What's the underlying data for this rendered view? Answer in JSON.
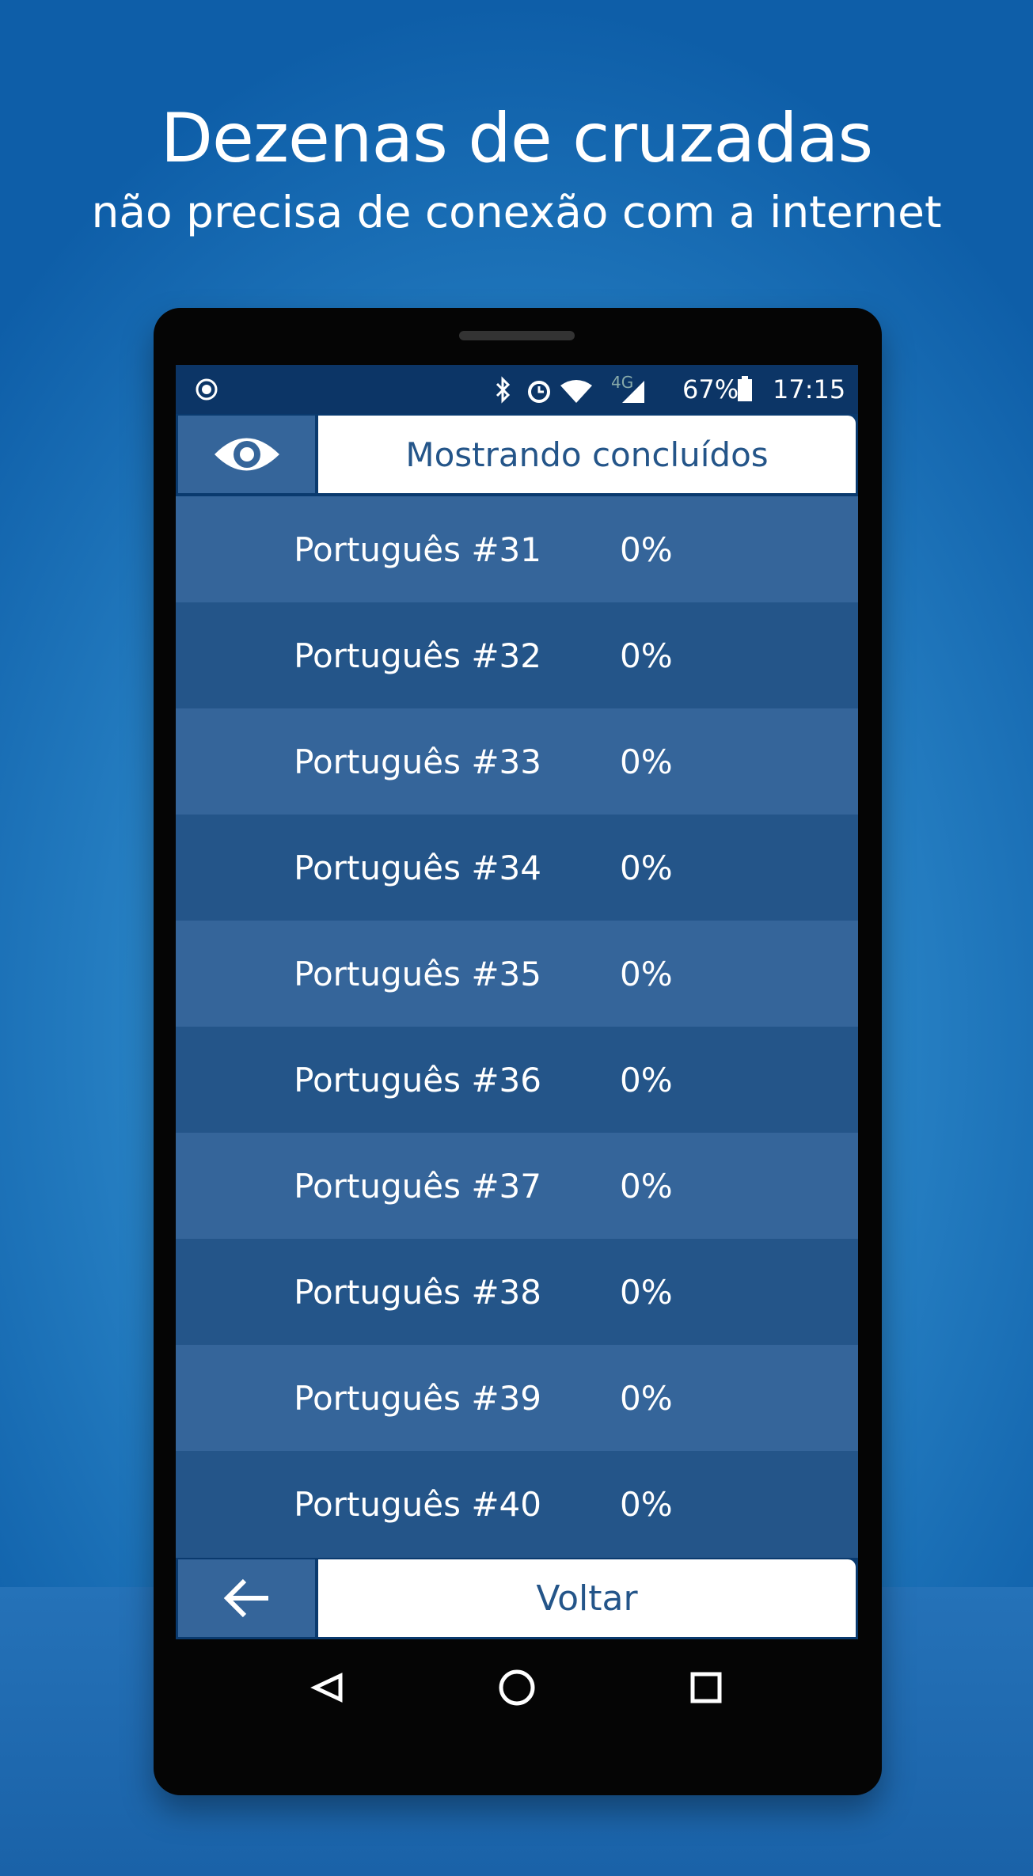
{
  "header": {
    "title": "Dezenas de cruzadas",
    "subtitle": "não precisa de conexão com a internet"
  },
  "status_bar": {
    "network": "4G",
    "battery": "67%",
    "time": "17:15"
  },
  "toolbar": {
    "filter_label": "Mostrando concluídos"
  },
  "puzzles": [
    {
      "name": "Português #31",
      "progress": "0%"
    },
    {
      "name": "Português #32",
      "progress": "0%"
    },
    {
      "name": "Português #33",
      "progress": "0%"
    },
    {
      "name": "Português #34",
      "progress": "0%"
    },
    {
      "name": "Português #35",
      "progress": "0%"
    },
    {
      "name": "Português #36",
      "progress": "0%"
    },
    {
      "name": "Português #37",
      "progress": "0%"
    },
    {
      "name": "Português #38",
      "progress": "0%"
    },
    {
      "name": "Português #39",
      "progress": "0%"
    },
    {
      "name": "Português #40",
      "progress": "0%"
    }
  ],
  "footer": {
    "back_label": "Voltar"
  }
}
